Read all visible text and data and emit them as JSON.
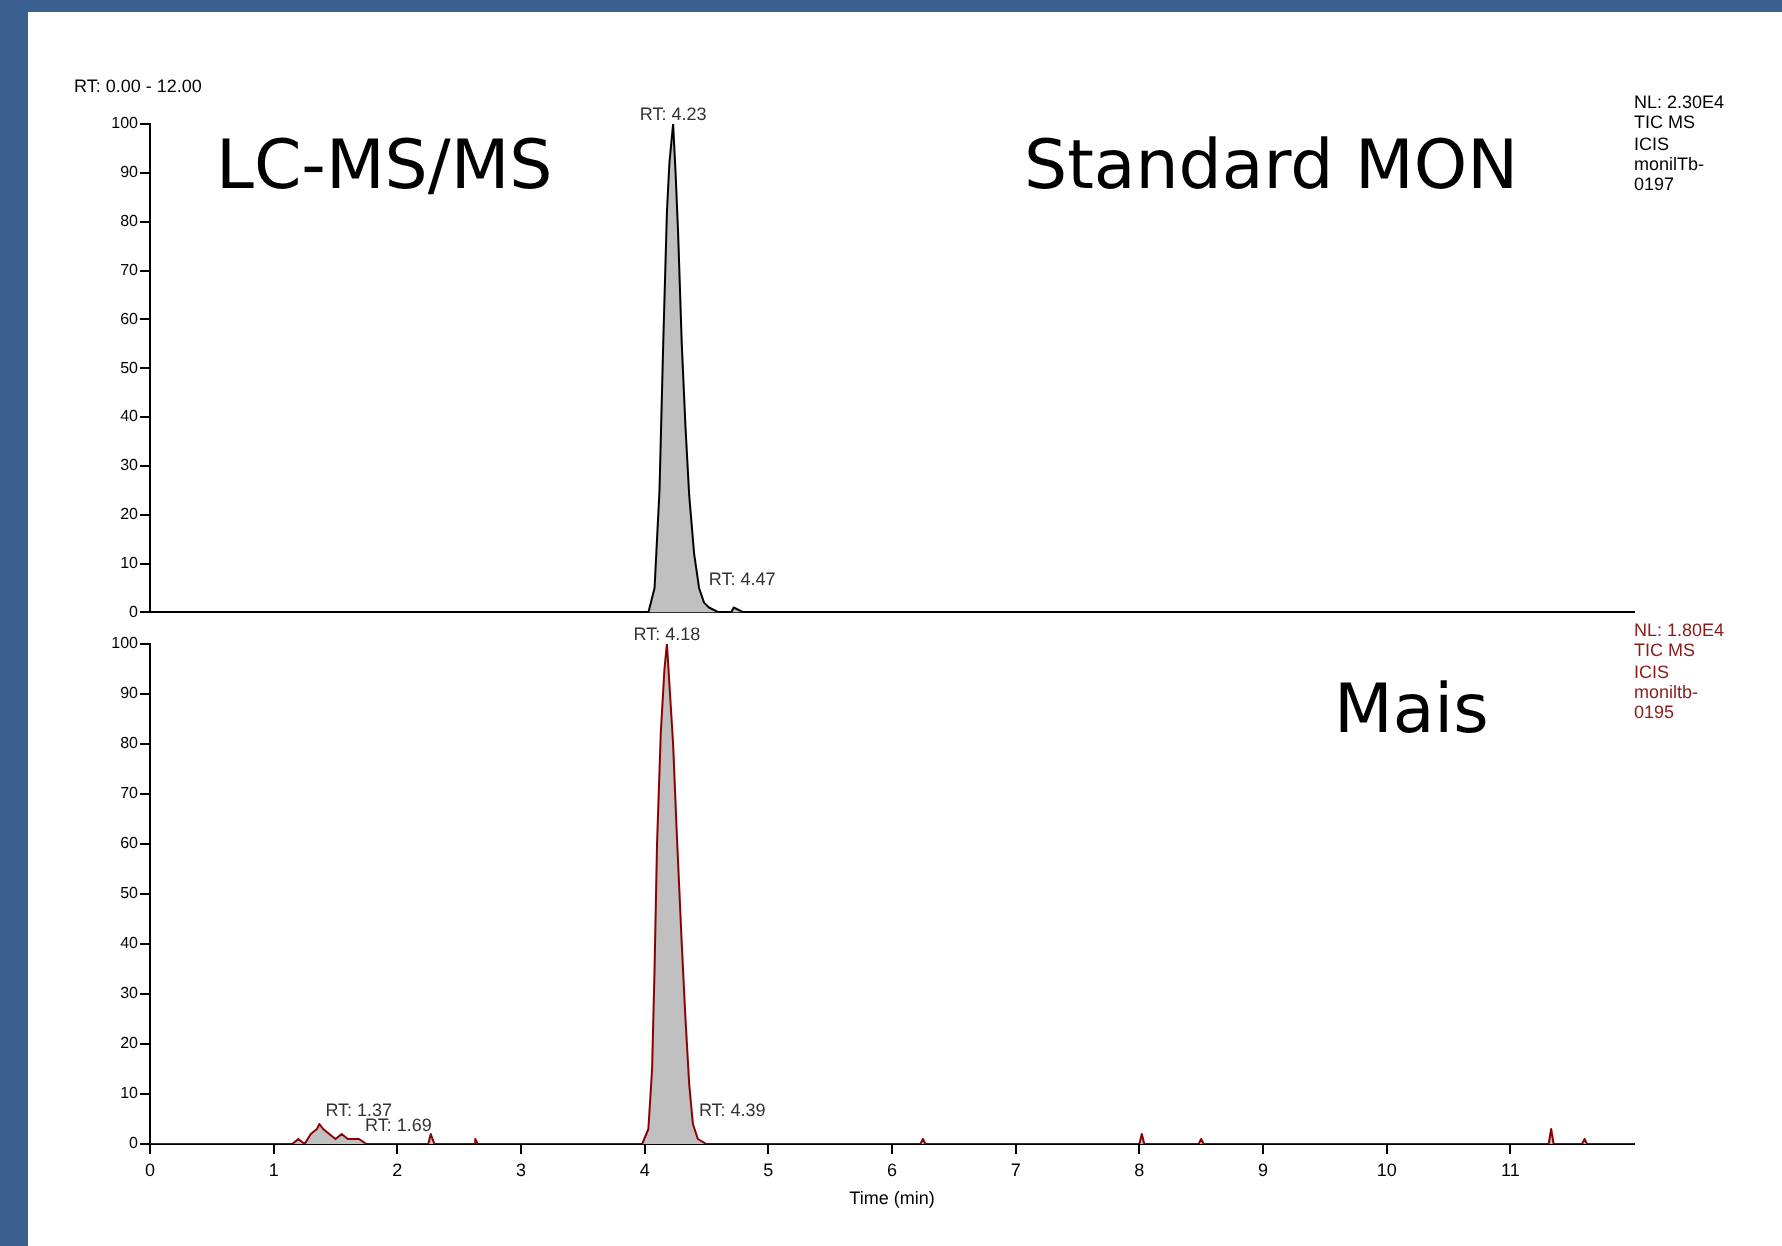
{
  "chart_data": [
    {
      "type": "area",
      "x": [
        0,
        3.95,
        4.03,
        4.08,
        4.12,
        4.15,
        4.18,
        4.2,
        4.23,
        4.25,
        4.27,
        4.3,
        4.33,
        4.36,
        4.4,
        4.44,
        4.48,
        4.52,
        4.6,
        4.7,
        4.72,
        4.8,
        12
      ],
      "series": [
        {
          "color": "#000000",
          "values": [
            0,
            0,
            0,
            5,
            25,
            55,
            82,
            92,
            100,
            90,
            78,
            55,
            38,
            24,
            12,
            5,
            2,
            1,
            0,
            0,
            1,
            0,
            0
          ]
        }
      ],
      "xlim": [
        0,
        12
      ],
      "xticks": [
        0,
        1,
        2,
        3,
        4,
        5,
        6,
        7,
        8,
        9,
        10,
        11
      ],
      "ylim": [
        0,
        100
      ],
      "yticks": [
        0,
        10,
        20,
        30,
        40,
        50,
        60,
        70,
        80,
        90,
        100
      ],
      "tick_labels": "y",
      "grid": false,
      "annotations": [
        "LC-MS/MS",
        "Standard MON",
        "NL: 2.30E4 TIC MS ICIS monilTb-0197",
        "RT: 0.00 - 12.00",
        {
          "text": "RT: 4.23",
          "x": 4.23,
          "y": 100
        },
        {
          "text": "RT: 4.47",
          "x": 4.47,
          "y": 4
        }
      ]
    },
    {
      "type": "area",
      "x": [
        0,
        1.15,
        1.2,
        1.25,
        1.3,
        1.35,
        1.37,
        1.4,
        1.45,
        1.5,
        1.55,
        1.6,
        1.65,
        1.69,
        1.75,
        1.8,
        2.25,
        2.27,
        2.3,
        2.62,
        2.63,
        2.65,
        3.98,
        4.03,
        4.06,
        4.08,
        4.1,
        4.13,
        4.16,
        4.18,
        4.2,
        4.23,
        4.26,
        4.3,
        4.33,
        4.36,
        4.39,
        4.43,
        4.5,
        6.23,
        6.25,
        6.27,
        8.0,
        8.02,
        8.04,
        8.48,
        8.5,
        8.52,
        11.31,
        11.33,
        11.35,
        11.58,
        11.6,
        11.62,
        12
      ],
      "series": [
        {
          "color": "#8b0000",
          "values": [
            0,
            0,
            1,
            0,
            2,
            3,
            4,
            3,
            2,
            1,
            2,
            1,
            1,
            1,
            0,
            0,
            0,
            2,
            0,
            0,
            1,
            0,
            0,
            3,
            15,
            35,
            60,
            82,
            95,
            100,
            92,
            80,
            62,
            40,
            25,
            12,
            4,
            1,
            0,
            0,
            1,
            0,
            0,
            2,
            0,
            0,
            1,
            0,
            0,
            3,
            0,
            0,
            1,
            0,
            0
          ]
        }
      ],
      "xlim": [
        0,
        12
      ],
      "xticks": [
        0,
        1,
        2,
        3,
        4,
        5,
        6,
        7,
        8,
        9,
        10,
        11
      ],
      "ylim": [
        0,
        100
      ],
      "yticks": [
        0,
        10,
        20,
        30,
        40,
        50,
        60,
        70,
        80,
        90,
        100
      ],
      "grid": false,
      "xlabel": "Time (min)",
      "annotations": [
        "Mais",
        "NL: 1.80E4 TIC MS ICIS moniltb-0195",
        {
          "text": "RT: 4.18",
          "x": 4.18,
          "y": 100
        },
        {
          "text": "RT: 1.37",
          "x": 1.37,
          "y": 4
        },
        {
          "text": "RT: 1.69",
          "x": 1.69,
          "y": 1
        },
        {
          "text": "RT: 4.39",
          "x": 4.39,
          "y": 4
        }
      ]
    }
  ]
}
